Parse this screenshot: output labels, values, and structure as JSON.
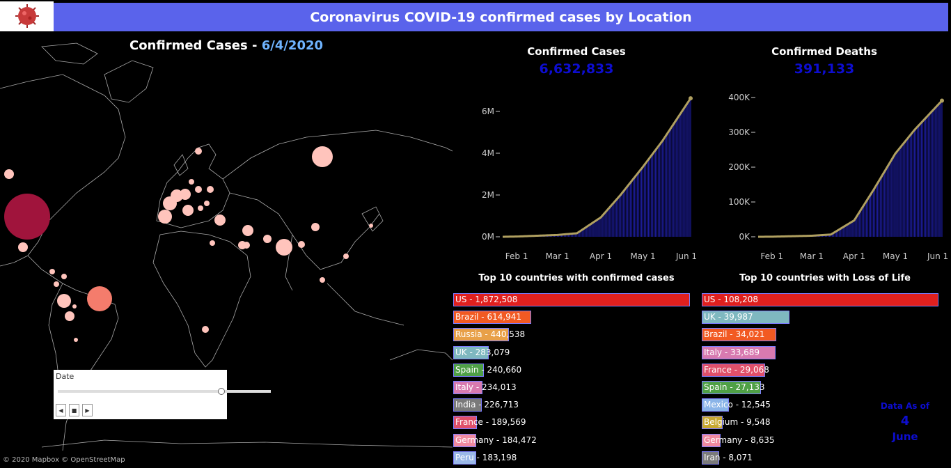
{
  "header": {
    "title": "Coronavirus COVID-19 confirmed cases by Location"
  },
  "map": {
    "title_prefix": "Confirmed Cases - ",
    "title_date": "6/4/2020",
    "attribution": "© 2020 Mapbox © OpenStreetMap"
  },
  "date_filter": {
    "label": "Date",
    "prev_icon": "◀",
    "stop_icon": "■",
    "next_icon": "▶"
  },
  "kpi_cases": {
    "title": "Confirmed Cases",
    "value": "6,632,833"
  },
  "kpi_deaths": {
    "title": "Confirmed Deaths",
    "value": "391,133"
  },
  "cases_chart": {
    "x_labels": [
      "Feb 1",
      "Mar 1",
      "Apr 1",
      "May 1",
      "Jun 1"
    ],
    "y_labels": [
      "0M",
      "2M",
      "4M",
      "6M"
    ]
  },
  "deaths_chart": {
    "x_labels": [
      "Feb 1",
      "Mar 1",
      "Apr 1",
      "May 1",
      "Jun 1"
    ],
    "y_labels": [
      "0K",
      "100K",
      "200K",
      "300K",
      "400K"
    ]
  },
  "chart_data": [
    {
      "type": "area",
      "title": "Confirmed Cases",
      "x": [
        "2020-01-22",
        "2020-02-01",
        "2020-03-01",
        "2020-03-15",
        "2020-04-01",
        "2020-04-15",
        "2020-05-01",
        "2020-05-15",
        "2020-06-04"
      ],
      "series": [
        {
          "values": [
            0.0006,
            0.012,
            0.088,
            0.17,
            0.93,
            2.0,
            3.35,
            4.6,
            6.63
          ]
        }
      ],
      "ylim": [
        0,
        7
      ],
      "y_unit": "M"
    },
    {
      "type": "area",
      "title": "Confirmed Deaths",
      "x": [
        "2020-01-22",
        "2020-02-01",
        "2020-03-01",
        "2020-03-15",
        "2020-04-01",
        "2020-04-15",
        "2020-05-01",
        "2020-05-15",
        "2020-06-04"
      ],
      "series": [
        {
          "values": [
            0.017,
            0.26,
            3.0,
            6.5,
            47,
            134,
            239,
            307,
            391
          ]
        }
      ],
      "ylim": [
        0,
        400
      ],
      "y_unit": "K"
    },
    {
      "type": "bar",
      "title": "Top 10 countries with confirmed cases",
      "categories": [
        "US",
        "Brazil",
        "Russia",
        "UK",
        "Spain",
        "Italy",
        "India",
        "France",
        "Germany",
        "Peru"
      ],
      "values": [
        1872508,
        614941,
        440538,
        283079,
        240660,
        234013,
        226713,
        189569,
        184472,
        183198
      ]
    },
    {
      "type": "bar",
      "title": "Top 10 countries with Loss of Life",
      "categories": [
        "US",
        "UK",
        "Brazil",
        "Italy",
        "France",
        "Spain",
        "Mexico",
        "Belgium",
        "Germany",
        "Iran"
      ],
      "values": [
        108208,
        39987,
        34021,
        33689,
        29068,
        27133,
        12545,
        9548,
        8635,
        8071
      ]
    }
  ],
  "top_cases": {
    "title": "Top 10 countries with confirmed cases",
    "items": [
      {
        "label": "US - 1,872,508",
        "value": 1872508,
        "color": "#e0201e"
      },
      {
        "label": "Brazil - 614,941",
        "value": 614941,
        "color": "#f25a22"
      },
      {
        "label": "Russia - 440,538",
        "value": 440538,
        "color": "#e8a048"
      },
      {
        "label": "UK - 283,079",
        "value": 283079,
        "color": "#7fb8c0"
      },
      {
        "label": "Spain - 240,660",
        "value": 240660,
        "color": "#4fa046"
      },
      {
        "label": "Italy - 234,013",
        "value": 234013,
        "color": "#d87ab0"
      },
      {
        "label": "India - 226,713",
        "value": 226713,
        "color": "#7a7a7a"
      },
      {
        "label": "France - 189,569",
        "value": 189569,
        "color": "#e0506a"
      },
      {
        "label": "Germany - 184,472",
        "value": 184472,
        "color": "#f08aa0"
      },
      {
        "label": "Peru - 183,198",
        "value": 183198,
        "color": "#9ab8e8"
      }
    ]
  },
  "top_deaths": {
    "title": "Top 10 countries with Loss of Life",
    "items": [
      {
        "label": "US - 108,208",
        "value": 108208,
        "color": "#e0201e"
      },
      {
        "label": "UK - 39,987",
        "value": 39987,
        "color": "#7fb8c0"
      },
      {
        "label": "Brazil - 34,021",
        "value": 34021,
        "color": "#f25a22"
      },
      {
        "label": "Italy - 33,689",
        "value": 33689,
        "color": "#d87ab0"
      },
      {
        "label": "France - 29,068",
        "value": 29068,
        "color": "#e0506a"
      },
      {
        "label": "Spain - 27,133",
        "value": 27133,
        "color": "#4fa046"
      },
      {
        "label": "Mexico - 12,545",
        "value": 12545,
        "color": "#8ab4e8"
      },
      {
        "label": "Belgium - 9,548",
        "value": 9548,
        "color": "#c8a830"
      },
      {
        "label": "Germany - 8,635",
        "value": 8635,
        "color": "#f08aa0"
      },
      {
        "label": "Iran - 8,071",
        "value": 8071,
        "color": "#7a7a7a"
      }
    ]
  },
  "data_as_of": {
    "label": "Data As of",
    "day": "4",
    "month": "June"
  },
  "colors": {
    "header": "#5a63eb",
    "kpi": "#0d0dd0",
    "chart_bars": "#1c1c9a",
    "chart_line": "#b0a060"
  }
}
